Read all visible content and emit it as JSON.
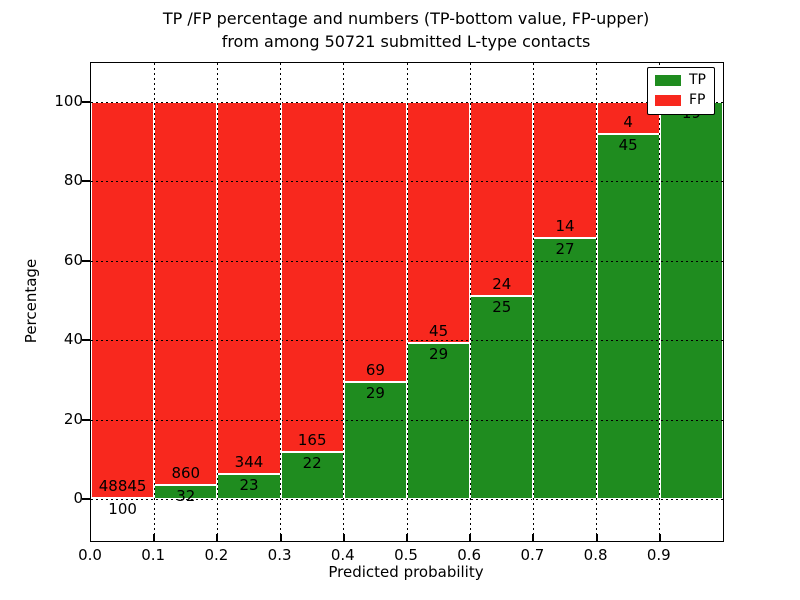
{
  "title": {
    "line1": "TP /FP percentage and numbers (TP-bottom value, FP-upper)",
    "line2": "from among 50721 submitted L-type contacts"
  },
  "axes": {
    "xlabel": "Predicted probability",
    "ylabel": "Percentage",
    "x_ticks": [
      "0.0",
      "0.1",
      "0.2",
      "0.3",
      "0.4",
      "0.5",
      "0.6",
      "0.7",
      "0.8",
      "0.9"
    ],
    "y_ticks": [
      "0",
      "20",
      "40",
      "60",
      "80",
      "100"
    ]
  },
  "legend": {
    "items": [
      {
        "label": "TP",
        "color": "#1f8c1f"
      },
      {
        "label": "FP",
        "color": "#f8281e"
      }
    ]
  },
  "colors": {
    "tp_green": "#1f8c1f",
    "fp_red": "#f8281e",
    "edge_white": "#ffffff"
  },
  "chart_data": {
    "type": "bar",
    "stacked": true,
    "title": "TP /FP percentage and numbers (TP-bottom value, FP-upper) from among 50721 submitted L-type contacts",
    "xlabel": "Predicted probability",
    "ylabel": "Percentage",
    "total_submitted": 50721,
    "categories": [
      "0.0-0.1",
      "0.1-0.2",
      "0.2-0.3",
      "0.3-0.4",
      "0.4-0.5",
      "0.5-0.6",
      "0.6-0.7",
      "0.7-0.8",
      "0.8-0.9",
      "0.9-1.0"
    ],
    "bin_start": [
      0.0,
      0.1,
      0.2,
      0.3,
      0.4,
      0.5,
      0.6,
      0.7,
      0.8,
      0.9
    ],
    "bin_width": 0.1,
    "xlim": [
      0.0,
      1.0
    ],
    "ylim": [
      -10.6,
      110.1
    ],
    "grid": "dotted",
    "legend_position": "upper right",
    "series": [
      {
        "name": "TP",
        "color": "#1f8c1f",
        "counts": [
          100,
          32,
          23,
          22,
          29,
          29,
          25,
          27,
          45,
          19
        ],
        "percent": [
          0.2,
          3.59,
          6.27,
          11.76,
          29.59,
          39.19,
          51.02,
          65.85,
          91.84,
          100.0
        ]
      },
      {
        "name": "FP",
        "color": "#f8281e",
        "counts": [
          48845,
          860,
          344,
          165,
          69,
          45,
          24,
          14,
          4,
          null
        ],
        "percent": [
          99.8,
          96.41,
          93.73,
          88.24,
          70.41,
          60.81,
          48.98,
          34.15,
          8.16,
          0.0
        ]
      }
    ],
    "bar_labels": [
      {
        "fp": "48845",
        "tp": "100"
      },
      {
        "fp": "860",
        "tp": "32"
      },
      {
        "fp": "344",
        "tp": "23"
      },
      {
        "fp": "165",
        "tp": "22"
      },
      {
        "fp": "69",
        "tp": "29"
      },
      {
        "fp": "45",
        "tp": "29"
      },
      {
        "fp": "24",
        "tp": "25"
      },
      {
        "fp": "14",
        "tp": "27"
      },
      {
        "fp": "4",
        "tp": "45"
      },
      {
        "fp": "",
        "tp": "19"
      }
    ]
  }
}
